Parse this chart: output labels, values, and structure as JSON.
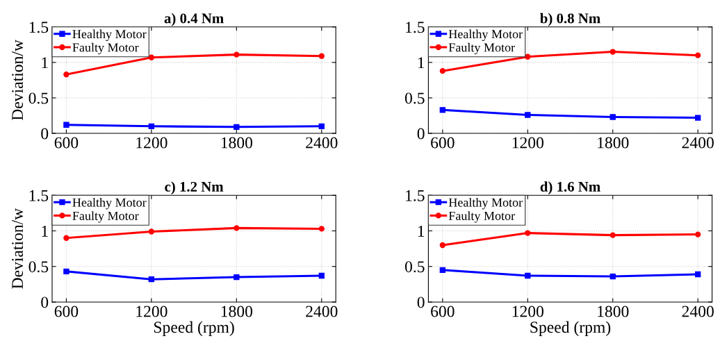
{
  "chart_data": [
    {
      "type": "line",
      "title": "a) 0.4 Nm",
      "ylabel": "Deviation/w",
      "x": [
        600,
        1200,
        1800,
        2400
      ],
      "xlim": [
        500,
        2500
      ],
      "xticks": [
        600,
        1200,
        1800,
        2400
      ],
      "ylim": [
        0,
        1.5
      ],
      "yticks": [
        0,
        0.5,
        1,
        1.5
      ],
      "grid": true,
      "legend": "top left",
      "series": [
        {
          "name": "Healthy Motor",
          "color": "#0000ff",
          "marker": "square",
          "values": [
            0.12,
            0.1,
            0.09,
            0.1
          ]
        },
        {
          "name": "Faulty Motor",
          "color": "#ff0000",
          "marker": "circle",
          "values": [
            0.83,
            1.07,
            1.11,
            1.09
          ]
        }
      ]
    },
    {
      "type": "line",
      "title": "b) 0.8 Nm",
      "x": [
        600,
        1200,
        1800,
        2400
      ],
      "xlim": [
        500,
        2500
      ],
      "xticks": [
        600,
        1200,
        1800,
        2400
      ],
      "ylim": [
        0,
        1.5
      ],
      "yticks": [
        0,
        0.5,
        1,
        1.5
      ],
      "grid": true,
      "legend": "top left",
      "series": [
        {
          "name": "Healthy Motor",
          "color": "#0000ff",
          "marker": "square",
          "values": [
            0.33,
            0.26,
            0.23,
            0.22
          ]
        },
        {
          "name": "Faulty Motor",
          "color": "#ff0000",
          "marker": "circle",
          "values": [
            0.88,
            1.08,
            1.15,
            1.1
          ]
        }
      ]
    },
    {
      "type": "line",
      "title": "c) 1.2 Nm",
      "xlabel": "Speed (rpm)",
      "ylabel": "Deviation/w",
      "x": [
        600,
        1200,
        1800,
        2400
      ],
      "xlim": [
        500,
        2500
      ],
      "xticks": [
        600,
        1200,
        1800,
        2400
      ],
      "ylim": [
        0,
        1.5
      ],
      "yticks": [
        0,
        0.5,
        1,
        1.5
      ],
      "grid": true,
      "legend": "top left",
      "series": [
        {
          "name": "Healthy Motor",
          "color": "#0000ff",
          "marker": "square",
          "values": [
            0.43,
            0.32,
            0.35,
            0.37
          ]
        },
        {
          "name": "Faulty Motor",
          "color": "#ff0000",
          "marker": "circle",
          "values": [
            0.9,
            0.99,
            1.04,
            1.03
          ]
        }
      ]
    },
    {
      "type": "line",
      "title": "d) 1.6 Nm",
      "xlabel": "Speed (rpm)",
      "x": [
        600,
        1200,
        1800,
        2400
      ],
      "xlim": [
        500,
        2500
      ],
      "xticks": [
        600,
        1200,
        1800,
        2400
      ],
      "ylim": [
        0,
        1.5
      ],
      "yticks": [
        0,
        0.5,
        1,
        1.5
      ],
      "grid": true,
      "legend": "top left",
      "series": [
        {
          "name": "Healthy Motor",
          "color": "#0000ff",
          "marker": "square",
          "values": [
            0.45,
            0.37,
            0.36,
            0.39
          ]
        },
        {
          "name": "Faulty Motor",
          "color": "#ff0000",
          "marker": "circle",
          "values": [
            0.8,
            0.97,
            0.94,
            0.95
          ]
        }
      ]
    }
  ]
}
